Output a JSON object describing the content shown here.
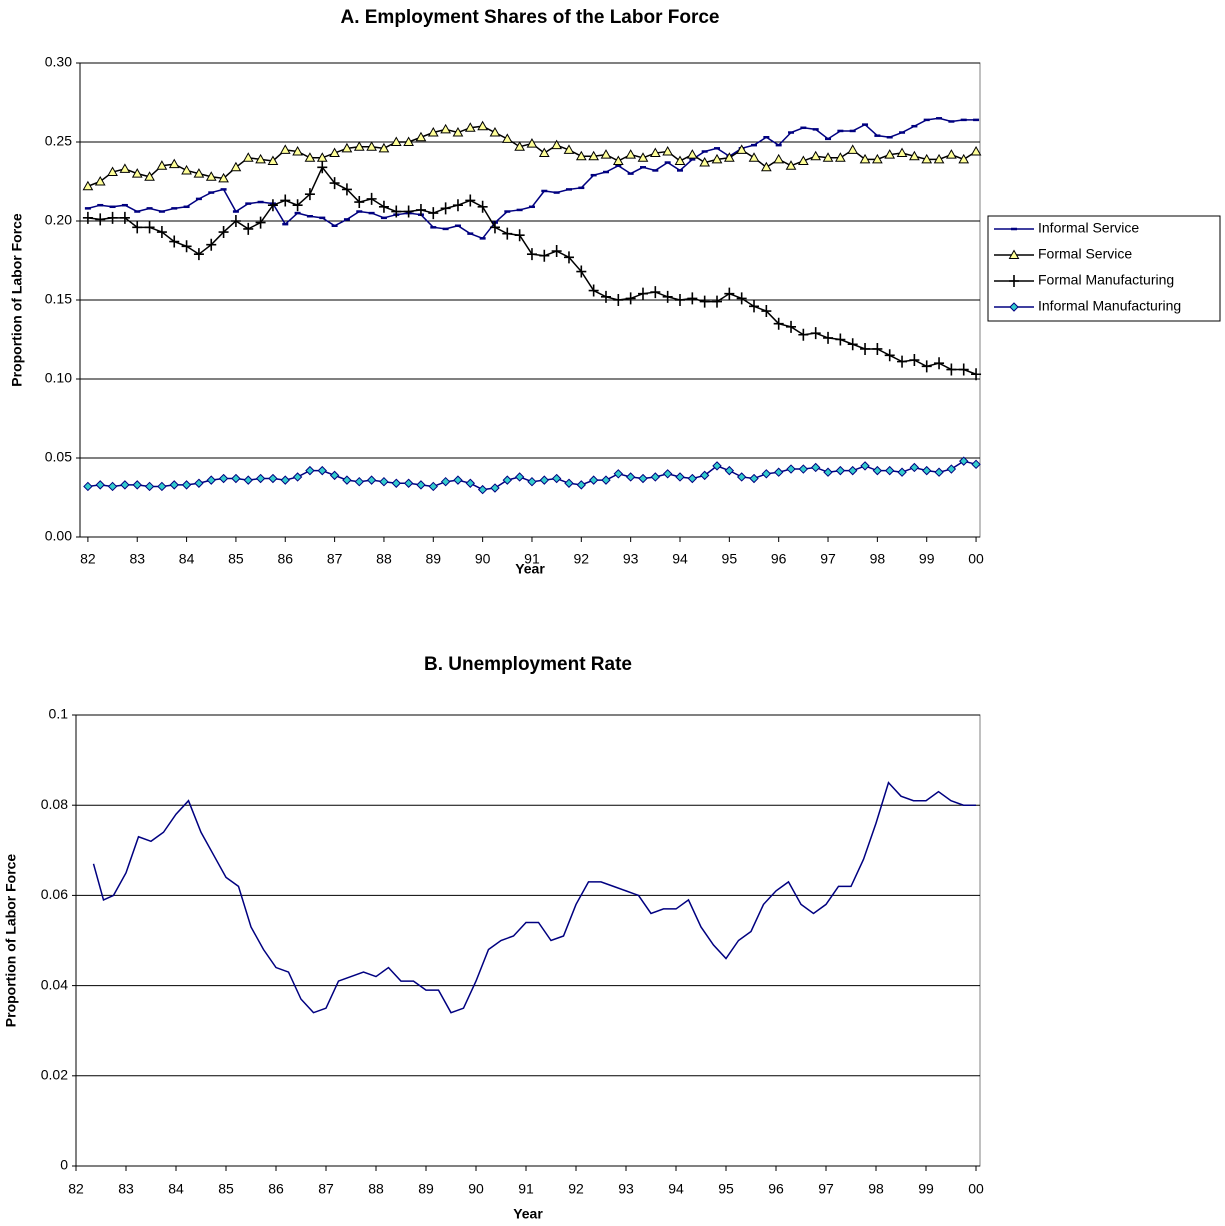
{
  "chart_data": [
    {
      "type": "line",
      "title": "A. Employment Shares of the Labor Force",
      "x_label": "Year",
      "y_label": "Proportion of Labor Force",
      "xlim": [
        1981.84,
        2000.08
      ],
      "xticks": [
        {
          "value": 1982,
          "label": "82"
        },
        {
          "value": 1983,
          "label": "83"
        },
        {
          "value": 1984,
          "label": "84"
        },
        {
          "value": 1985,
          "label": "85"
        },
        {
          "value": 1986,
          "label": "86"
        },
        {
          "value": 1987,
          "label": "87"
        },
        {
          "value": 1988,
          "label": "88"
        },
        {
          "value": 1989,
          "label": "89"
        },
        {
          "value": 1990,
          "label": "90"
        },
        {
          "value": 1991,
          "label": "91"
        },
        {
          "value": 1992,
          "label": "92"
        },
        {
          "value": 1993,
          "label": "93"
        },
        {
          "value": 1994,
          "label": "94"
        },
        {
          "value": 1995,
          "label": "95"
        },
        {
          "value": 1996,
          "label": "96"
        },
        {
          "value": 1997,
          "label": "97"
        },
        {
          "value": 1998,
          "label": "98"
        },
        {
          "value": 1999,
          "label": "99"
        },
        {
          "value": 2000,
          "label": "00"
        }
      ],
      "ylim": [
        0,
        0.3
      ],
      "yticks": [
        {
          "value": 0,
          "label": "0.00"
        },
        0.05,
        {
          "value": 0.1,
          "label": "0.10"
        },
        0.15,
        {
          "value": 0.2,
          "label": "0.20"
        },
        0.25,
        {
          "value": 0.3,
          "label": "0.30"
        }
      ],
      "grid": true,
      "legend": "right",
      "x": [
        1982,
        1982.25,
        1982.5,
        1982.75,
        1983,
        1983.25,
        1983.5,
        1983.75,
        1984,
        1984.25,
        1984.5,
        1984.75,
        1985,
        1985.25,
        1985.5,
        1985.75,
        1986,
        1986.25,
        1986.5,
        1986.75,
        1987,
        1987.25,
        1987.5,
        1987.75,
        1988,
        1988.25,
        1988.5,
        1988.75,
        1989,
        1989.25,
        1989.5,
        1989.75,
        1990,
        1990.25,
        1990.5,
        1990.75,
        1991,
        1991.25,
        1991.5,
        1991.75,
        1992,
        1992.25,
        1992.5,
        1992.75,
        1993,
        1993.25,
        1993.5,
        1993.75,
        1994,
        1994.25,
        1994.5,
        1994.75,
        1995,
        1995.25,
        1995.5,
        1995.75,
        1996,
        1996.25,
        1996.5,
        1996.75,
        1997,
        1997.25,
        1997.5,
        1997.75,
        1998,
        1998.25,
        1998.5,
        1998.75,
        1999,
        1999.25,
        1999.5,
        1999.75,
        2000
      ],
      "series": [
        {
          "name": "Informal Service",
          "color": "#000080",
          "marker": "dash",
          "marker_color": "#000080",
          "values": [
            0.208,
            0.21,
            0.209,
            0.21,
            0.206,
            0.208,
            0.206,
            0.208,
            0.209,
            0.214,
            0.218,
            0.22,
            0.206,
            0.211,
            0.212,
            0.211,
            0.198,
            0.205,
            0.203,
            0.202,
            0.197,
            0.201,
            0.206,
            0.205,
            0.202,
            0.204,
            0.205,
            0.204,
            0.196,
            0.195,
            0.197,
            0.192,
            0.189,
            0.199,
            0.206,
            0.207,
            0.209,
            0.219,
            0.218,
            0.22,
            0.221,
            0.229,
            0.231,
            0.235,
            0.23,
            0.234,
            0.232,
            0.237,
            0.232,
            0.239,
            0.244,
            0.246,
            0.241,
            0.246,
            0.248,
            0.253,
            0.248,
            0.256,
            0.259,
            0.258,
            0.252,
            0.257,
            0.257,
            0.261,
            0.254,
            0.253,
            0.256,
            0.26,
            0.264,
            0.265,
            0.263,
            0.264,
            0.264
          ]
        },
        {
          "name": "Formal Service",
          "color": "#000000",
          "marker": "triangle",
          "marker_color": "#ffff99",
          "values": [
            0.222,
            0.225,
            0.231,
            0.233,
            0.23,
            0.228,
            0.235,
            0.236,
            0.232,
            0.23,
            0.228,
            0.227,
            0.234,
            0.24,
            0.239,
            0.238,
            0.245,
            0.244,
            0.24,
            0.24,
            0.243,
            0.246,
            0.247,
            0.247,
            0.246,
            0.25,
            0.25,
            0.253,
            0.256,
            0.258,
            0.256,
            0.259,
            0.26,
            0.256,
            0.252,
            0.247,
            0.249,
            0.243,
            0.248,
            0.245,
            0.241,
            0.241,
            0.242,
            0.238,
            0.242,
            0.24,
            0.243,
            0.244,
            0.238,
            0.242,
            0.237,
            0.239,
            0.24,
            0.245,
            0.24,
            0.234,
            0.239,
            0.235,
            0.238,
            0.241,
            0.24,
            0.24,
            0.245,
            0.239,
            0.239,
            0.242,
            0.243,
            0.241,
            0.239,
            0.239,
            0.242,
            0.239,
            0.244
          ]
        },
        {
          "name": "Formal Manufacturing",
          "color": "#000000",
          "marker": "plus",
          "marker_color": "#000000",
          "values": [
            0.202,
            0.201,
            0.202,
            0.202,
            0.196,
            0.196,
            0.193,
            0.187,
            0.184,
            0.179,
            0.185,
            0.193,
            0.2,
            0.195,
            0.199,
            0.21,
            0.213,
            0.21,
            0.217,
            0.234,
            0.224,
            0.22,
            0.212,
            0.214,
            0.209,
            0.206,
            0.206,
            0.207,
            0.205,
            0.208,
            0.21,
            0.213,
            0.209,
            0.196,
            0.192,
            0.191,
            0.179,
            0.178,
            0.181,
            0.177,
            0.168,
            0.156,
            0.152,
            0.15,
            0.151,
            0.154,
            0.155,
            0.152,
            0.15,
            0.151,
            0.149,
            0.149,
            0.154,
            0.151,
            0.146,
            0.143,
            0.135,
            0.133,
            0.128,
            0.129,
            0.126,
            0.125,
            0.122,
            0.119,
            0.119,
            0.115,
            0.111,
            0.112,
            0.108,
            0.11,
            0.106,
            0.106,
            0.103
          ]
        },
        {
          "name": "Informal Manufacturing",
          "color": "#000080",
          "marker": "diamond",
          "marker_color": "#33cccc",
          "values": [
            0.032,
            0.033,
            0.032,
            0.033,
            0.033,
            0.032,
            0.032,
            0.033,
            0.033,
            0.034,
            0.036,
            0.037,
            0.037,
            0.036,
            0.037,
            0.037,
            0.036,
            0.038,
            0.042,
            0.042,
            0.039,
            0.036,
            0.035,
            0.036,
            0.035,
            0.034,
            0.034,
            0.033,
            0.032,
            0.035,
            0.036,
            0.034,
            0.03,
            0.031,
            0.036,
            0.038,
            0.035,
            0.036,
            0.037,
            0.034,
            0.033,
            0.036,
            0.036,
            0.04,
            0.038,
            0.037,
            0.038,
            0.04,
            0.038,
            0.037,
            0.039,
            0.045,
            0.042,
            0.038,
            0.037,
            0.04,
            0.041,
            0.043,
            0.043,
            0.044,
            0.041,
            0.042,
            0.042,
            0.045,
            0.042,
            0.042,
            0.041,
            0.044,
            0.042,
            0.041,
            0.043,
            0.048,
            0.046
          ]
        }
      ]
    },
    {
      "type": "line",
      "title": "B. Unemployment Rate",
      "x_label": "Year",
      "y_label": "Proportion of Labor Force",
      "xlim": [
        1982,
        2000.08
      ],
      "xticks": [
        {
          "value": 1982,
          "label": "82"
        },
        {
          "value": 1983,
          "label": "83"
        },
        {
          "value": 1984,
          "label": "84"
        },
        {
          "value": 1985,
          "label": "85"
        },
        {
          "value": 1986,
          "label": "86"
        },
        {
          "value": 1987,
          "label": "87"
        },
        {
          "value": 1988,
          "label": "88"
        },
        {
          "value": 1989,
          "label": "89"
        },
        {
          "value": 1990,
          "label": "90"
        },
        {
          "value": 1991,
          "label": "91"
        },
        {
          "value": 1992,
          "label": "92"
        },
        {
          "value": 1993,
          "label": "93"
        },
        {
          "value": 1994,
          "label": "94"
        },
        {
          "value": 1995,
          "label": "95"
        },
        {
          "value": 1996,
          "label": "96"
        },
        {
          "value": 1997,
          "label": "97"
        },
        {
          "value": 1998,
          "label": "98"
        },
        {
          "value": 1999,
          "label": "99"
        },
        {
          "value": 2000,
          "label": "00"
        }
      ],
      "ylim": [
        0,
        0.1
      ],
      "yticks": [
        0,
        0.02,
        0.04,
        0.06,
        0.08,
        0.1
      ],
      "grid": true,
      "x": [
        1982.35,
        1982.55,
        1982.75,
        1983,
        1983.25,
        1983.5,
        1983.75,
        1984,
        1984.25,
        1984.5,
        1984.75,
        1985,
        1985.25,
        1985.5,
        1985.75,
        1986,
        1986.25,
        1986.5,
        1986.75,
        1987,
        1987.25,
        1987.5,
        1987.75,
        1988,
        1988.25,
        1988.5,
        1988.75,
        1989,
        1989.25,
        1989.5,
        1989.75,
        1990,
        1990.25,
        1990.5,
        1990.75,
        1991,
        1991.25,
        1991.5,
        1991.75,
        1992,
        1992.25,
        1992.5,
        1992.75,
        1993,
        1993.25,
        1993.5,
        1993.75,
        1994,
        1994.25,
        1994.5,
        1994.75,
        1995,
        1995.25,
        1995.5,
        1995.75,
        1996,
        1996.25,
        1996.5,
        1996.75,
        1997,
        1997.25,
        1997.5,
        1997.75,
        1998,
        1998.25,
        1998.5,
        1998.75,
        1999,
        1999.25,
        1999.5,
        1999.75,
        2000
      ],
      "series": [
        {
          "color": "#000080",
          "values": [
            0.067,
            0.059,
            0.06,
            0.065,
            0.073,
            0.072,
            0.074,
            0.078,
            0.081,
            0.074,
            0.069,
            0.064,
            0.062,
            0.053,
            0.048,
            0.044,
            0.043,
            0.037,
            0.034,
            0.035,
            0.041,
            0.042,
            0.043,
            0.042,
            0.044,
            0.041,
            0.041,
            0.039,
            0.039,
            0.034,
            0.035,
            0.041,
            0.048,
            0.05,
            0.051,
            0.054,
            0.054,
            0.05,
            0.051,
            0.058,
            0.063,
            0.063,
            0.062,
            0.061,
            0.06,
            0.056,
            0.057,
            0.057,
            0.059,
            0.053,
            0.049,
            0.046,
            0.05,
            0.052,
            0.058,
            0.061,
            0.063,
            0.058,
            0.056,
            0.058,
            0.062,
            0.062,
            0.068,
            0.076,
            0.085,
            0.082,
            0.081,
            0.081,
            0.083,
            0.081,
            0.08,
            0.08
          ]
        }
      ]
    }
  ]
}
